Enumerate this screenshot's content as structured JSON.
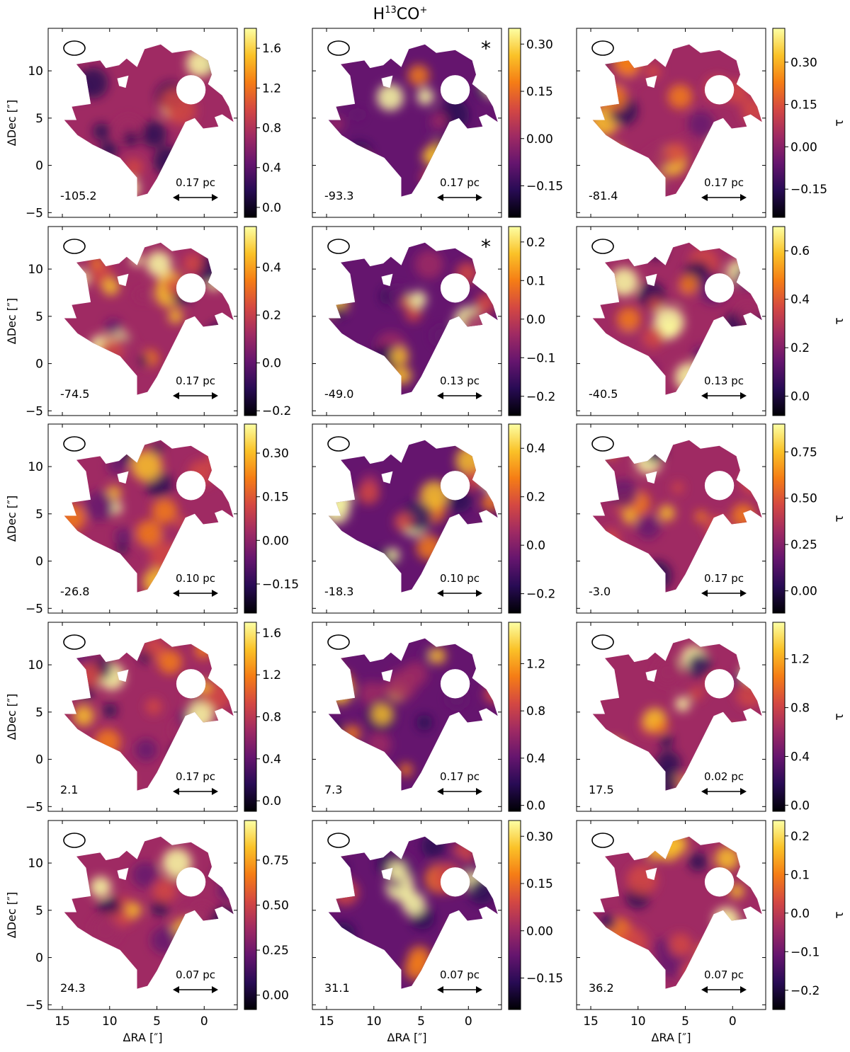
{
  "figure": {
    "title_prefix": "H",
    "title_sup1": "13",
    "title_mid": "CO",
    "title_sup2": "+"
  },
  "chart_data": {
    "type": "heatmap",
    "description_axes": {
      "xlabel": "ΔRA [″]",
      "ylabel": "ΔDec [″]",
      "colorbar_label": "τ",
      "xlim": [
        16.5,
        -3.5
      ],
      "ylim": [
        -5.5,
        14.5
      ],
      "xticks": [
        15,
        10,
        5,
        0
      ],
      "yticks": [
        -5,
        0,
        5,
        10
      ],
      "colormap": "inferno",
      "beam_marker": "ellipse (top-left)",
      "scalebar": "double arrow (bottom-right)"
    },
    "panels": [
      {
        "velocity": "-105.2",
        "scale": "0.17 pc",
        "star": false,
        "cbar_label": false,
        "range": [
          -0.1,
          1.8
        ],
        "ticks": [
          "0.0",
          "0.4",
          "0.8",
          "1.2",
          "1.6"
        ]
      },
      {
        "velocity": "-93.3",
        "scale": "0.17 pc",
        "star": true,
        "cbar_label": false,
        "range": [
          -0.25,
          0.35
        ],
        "ticks": [
          "−0.15",
          "0.00",
          "0.15",
          "0.30"
        ]
      },
      {
        "velocity": "-81.4",
        "scale": "0.17 pc",
        "star": false,
        "cbar_label": true,
        "range": [
          -0.25,
          0.42
        ],
        "ticks": [
          "−0.15",
          "0.00",
          "0.15",
          "0.30"
        ]
      },
      {
        "velocity": "-74.5",
        "scale": "0.17 pc",
        "star": false,
        "cbar_label": false,
        "range": [
          -0.22,
          0.57
        ],
        "ticks": [
          "−0.2",
          "0.0",
          "0.2",
          "0.4"
        ]
      },
      {
        "velocity": "-49.0",
        "scale": "0.13 pc",
        "star": true,
        "cbar_label": false,
        "range": [
          -0.25,
          0.24
        ],
        "ticks": [
          "−0.2",
          "−0.1",
          "0.0",
          "0.1",
          "0.2"
        ]
      },
      {
        "velocity": "-40.5",
        "scale": "0.13 pc",
        "star": false,
        "cbar_label": true,
        "range": [
          -0.08,
          0.7
        ],
        "ticks": [
          "0.0",
          "0.2",
          "0.4",
          "0.6"
        ]
      },
      {
        "velocity": "-26.8",
        "scale": "0.10 pc",
        "star": false,
        "cbar_label": false,
        "range": [
          -0.25,
          0.4
        ],
        "ticks": [
          "−0.15",
          "0.00",
          "0.15",
          "0.30"
        ]
      },
      {
        "velocity": "-18.3",
        "scale": "0.10 pc",
        "star": false,
        "cbar_label": false,
        "range": [
          -0.28,
          0.5
        ],
        "ticks": [
          "−0.2",
          "0.0",
          "0.2",
          "0.4"
        ]
      },
      {
        "velocity": "-3.0",
        "scale": "0.17 pc",
        "star": false,
        "cbar_label": true,
        "range": [
          -0.12,
          0.9
        ],
        "ticks": [
          "0.00",
          "0.25",
          "0.50",
          "0.75"
        ]
      },
      {
        "velocity": "2.1",
        "scale": "0.17 pc",
        "star": false,
        "cbar_label": false,
        "range": [
          -0.1,
          1.7
        ],
        "ticks": [
          "0.0",
          "0.4",
          "0.8",
          "1.2",
          "1.6"
        ]
      },
      {
        "velocity": "7.3",
        "scale": "0.17 pc",
        "star": false,
        "cbar_label": false,
        "range": [
          -0.05,
          1.55
        ],
        "ticks": [
          "0.0",
          "0.4",
          "0.8",
          "1.2"
        ]
      },
      {
        "velocity": "17.5",
        "scale": "0.02 pc",
        "star": false,
        "cbar_label": true,
        "range": [
          -0.05,
          1.5
        ],
        "ticks": [
          "0.0",
          "0.4",
          "0.8",
          "1.2"
        ]
      },
      {
        "velocity": "24.3",
        "scale": "0.07 pc",
        "star": false,
        "cbar_label": false,
        "range": [
          -0.08,
          0.97
        ],
        "ticks": [
          "0.00",
          "0.25",
          "0.50",
          "0.75"
        ]
      },
      {
        "velocity": "31.1",
        "scale": "0.07 pc",
        "star": false,
        "cbar_label": false,
        "range": [
          -0.25,
          0.35
        ],
        "ticks": [
          "−0.15",
          "0.00",
          "0.15",
          "0.30"
        ]
      },
      {
        "velocity": "36.2",
        "scale": "0.07 pc",
        "star": false,
        "cbar_label": true,
        "range": [
          -0.25,
          0.24
        ],
        "ticks": [
          "−0.2",
          "−0.1",
          "0.0",
          "0.1",
          "0.2"
        ]
      }
    ],
    "region_outline": [
      [
        14.8,
        4.8
      ],
      [
        13.5,
        4.8
      ],
      [
        14,
        6.2
      ],
      [
        12,
        6.5
      ],
      [
        12.5,
        9.5
      ],
      [
        13.5,
        10.7
      ],
      [
        11,
        11.1
      ],
      [
        10.4,
        10.3
      ],
      [
        9,
        10.6
      ],
      [
        8.2,
        11.3
      ],
      [
        7.1,
        10.4
      ],
      [
        6.3,
        12.3
      ],
      [
        4.6,
        12.8
      ],
      [
        3.4,
        11.9
      ],
      [
        1.4,
        12.2
      ],
      [
        -0.4,
        11.1
      ],
      [
        -0.8,
        9.6
      ],
      [
        -0.4,
        8.6
      ],
      [
        -1.9,
        7.4
      ],
      [
        -2.6,
        6.2
      ],
      [
        -3.1,
        4.6
      ],
      [
        -1.9,
        5.4
      ],
      [
        -1.1,
        5.1
      ],
      [
        -1.5,
        4.1
      ],
      [
        0.1,
        3.9
      ],
      [
        1.0,
        5.0
      ],
      [
        2.0,
        4.6
      ],
      [
        3.7,
        1.2
      ],
      [
        5.0,
        -1.4
      ],
      [
        6.0,
        -3.0
      ],
      [
        7.1,
        -3.3
      ],
      [
        7.1,
        -1.3
      ],
      [
        8.9,
        0.8
      ],
      [
        11.8,
        2.2
      ],
      [
        13.4,
        3.2
      ]
    ],
    "holes": [
      {
        "shape": "circle",
        "center": [
          1.4,
          8.0
        ],
        "radius": 1.55
      },
      {
        "shape": "notch",
        "points": [
          [
            9.2,
            9.2
          ],
          [
            8.0,
            9.5
          ],
          [
            8.3,
            8.2
          ],
          [
            9.0,
            8.4
          ]
        ]
      }
    ]
  }
}
